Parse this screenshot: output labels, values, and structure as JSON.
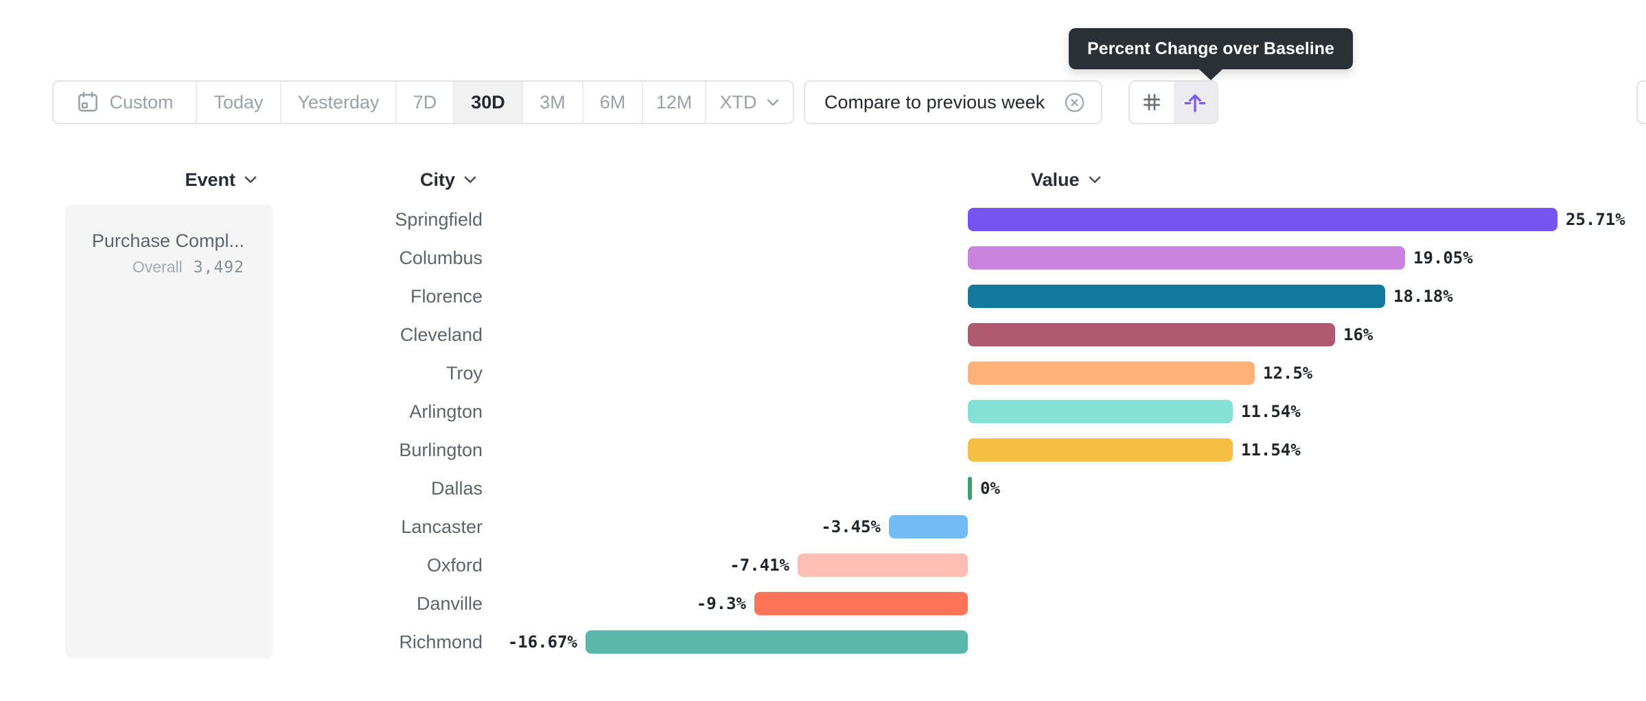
{
  "tooltip": {
    "text": "Percent Change over Baseline"
  },
  "toolbar": {
    "date_ranges": {
      "items": [
        {
          "id": "custom",
          "label": "Custom",
          "icon": "calendar-icon",
          "selected": false
        },
        {
          "id": "today",
          "label": "Today",
          "selected": false
        },
        {
          "id": "yesterday",
          "label": "Yesterday",
          "selected": false
        },
        {
          "id": "7d",
          "label": "7D",
          "selected": false
        },
        {
          "id": "30d",
          "label": "30D",
          "selected": true
        },
        {
          "id": "3m",
          "label": "3M",
          "selected": false
        },
        {
          "id": "6m",
          "label": "6M",
          "selected": false
        },
        {
          "id": "12m",
          "label": "12M",
          "selected": false
        },
        {
          "id": "xtd",
          "label": "XTD",
          "icon": "chevron-down-icon",
          "selected": false
        }
      ]
    },
    "compare_chip": {
      "label": "Compare to previous week",
      "close_icon": "circle-x-icon"
    },
    "view_toggle": {
      "options": [
        {
          "id": "grid",
          "icon": "grid-icon",
          "selected": false
        },
        {
          "id": "baseline",
          "icon": "baseline-arrow-icon",
          "selected": true
        }
      ]
    }
  },
  "columns": {
    "event": "Event",
    "city": "City",
    "value": "Value"
  },
  "event_card": {
    "name": "Purchase Compl...",
    "overall_label": "Overall",
    "overall_value": "3,492"
  },
  "chart_data": {
    "type": "bar",
    "orientation": "horizontal",
    "title": "Percent Change over Baseline",
    "xlabel": "Value",
    "categories": [
      "Springfield",
      "Columbus",
      "Florence",
      "Cleveland",
      "Troy",
      "Arlington",
      "Burlington",
      "Dallas",
      "Lancaster",
      "Oxford",
      "Danville",
      "Richmond"
    ],
    "values": [
      25.71,
      19.05,
      18.18,
      16,
      12.5,
      11.54,
      11.54,
      0,
      -3.45,
      -7.41,
      -9.3,
      -16.67
    ],
    "labels": [
      "25.71%",
      "19.05%",
      "18.18%",
      "16%",
      "12.5%",
      "11.54%",
      "11.54%",
      "0%",
      "-3.45%",
      "-7.41%",
      "-9.3%",
      "-16.67%"
    ],
    "colors": [
      "#7554F2",
      "#C983DF",
      "#11799C",
      "#B05A70",
      "#FFB178",
      "#83E0D5",
      "#F6BF43",
      "#34A56D",
      "#71BCF3",
      "#FEBDB3",
      "#FF7558",
      "#59B7AB"
    ],
    "baseline": 0,
    "xlim": [
      -20,
      30
    ],
    "grid": false,
    "legend": false
  },
  "colors": {
    "accent": "#7B5BF5",
    "tooltip_bg": "#2B3036",
    "panel_bg": "#F5F5F6",
    "border": "#E3E3E6",
    "selected_bg": "#F2F2F3",
    "text_dark": "#25282E",
    "text_gray": "#5F6469",
    "text_muted": "#9CA1A8"
  }
}
